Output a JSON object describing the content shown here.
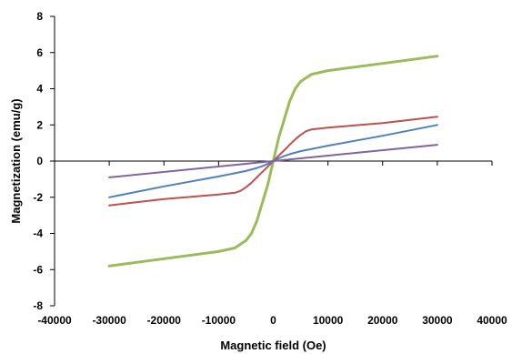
{
  "chart_data": {
    "type": "line",
    "title": "",
    "xlabel": "Magnetic field (Oe)",
    "ylabel": "Magnetization  (emu/g)",
    "xlim": [
      -40000,
      40000
    ],
    "ylim": [
      -8,
      8
    ],
    "xticks": [
      -40000,
      -30000,
      -20000,
      -10000,
      0,
      10000,
      20000,
      30000,
      40000
    ],
    "yticks": [
      -8,
      -6,
      -4,
      -2,
      0,
      2,
      4,
      6,
      8
    ],
    "xtick_labels": [
      "-40000",
      "-30000",
      "-20000",
      "-10000",
      "0",
      "10000",
      "20000",
      "30000",
      "40000"
    ],
    "ytick_labels": [
      "-8",
      "-6",
      "-4",
      "-2",
      "0",
      "2",
      "4",
      "6",
      "8"
    ],
    "grid": false,
    "legend": "none",
    "series": [
      {
        "color": "#9bbb59",
        "x": [
          -30000,
          -20000,
          -10000,
          -7000,
          -5000,
          -4000,
          -3000,
          -2000,
          -1000,
          0,
          1000,
          2000,
          3000,
          4000,
          5000,
          7000,
          10000,
          20000,
          30000
        ],
        "y": [
          -5.8,
          -5.4,
          -5.0,
          -4.8,
          -4.4,
          -4.0,
          -3.3,
          -2.3,
          -1.3,
          0,
          1.3,
          2.3,
          3.3,
          4.0,
          4.4,
          4.8,
          5.0,
          5.4,
          5.8
        ]
      },
      {
        "color": "#c0504d",
        "x": [
          -30000,
          -20000,
          -10000,
          -7000,
          -6000,
          -5000,
          -4000,
          -3000,
          -2000,
          -1000,
          0,
          1000,
          2000,
          3000,
          4000,
          5000,
          6000,
          7000,
          10000,
          20000,
          30000
        ],
        "y": [
          -2.45,
          -2.1,
          -1.85,
          -1.75,
          -1.65,
          -1.45,
          -1.2,
          -0.9,
          -0.6,
          -0.3,
          0,
          0.3,
          0.6,
          0.9,
          1.2,
          1.45,
          1.65,
          1.75,
          1.85,
          2.1,
          2.45
        ]
      },
      {
        "color": "#4f81bd",
        "x": [
          -30000,
          -20000,
          -10000,
          -5000,
          -3000,
          -2000,
          -1000,
          0,
          1000,
          2000,
          3000,
          5000,
          10000,
          20000,
          30000
        ],
        "y": [
          -2.0,
          -1.4,
          -0.85,
          -0.55,
          -0.38,
          -0.28,
          -0.15,
          0,
          0.15,
          0.28,
          0.38,
          0.55,
          0.85,
          1.4,
          2.0
        ]
      },
      {
        "color": "#8064a2",
        "x": [
          -30000,
          0,
          30000
        ],
        "y": [
          -0.9,
          0,
          0.9
        ]
      }
    ]
  }
}
